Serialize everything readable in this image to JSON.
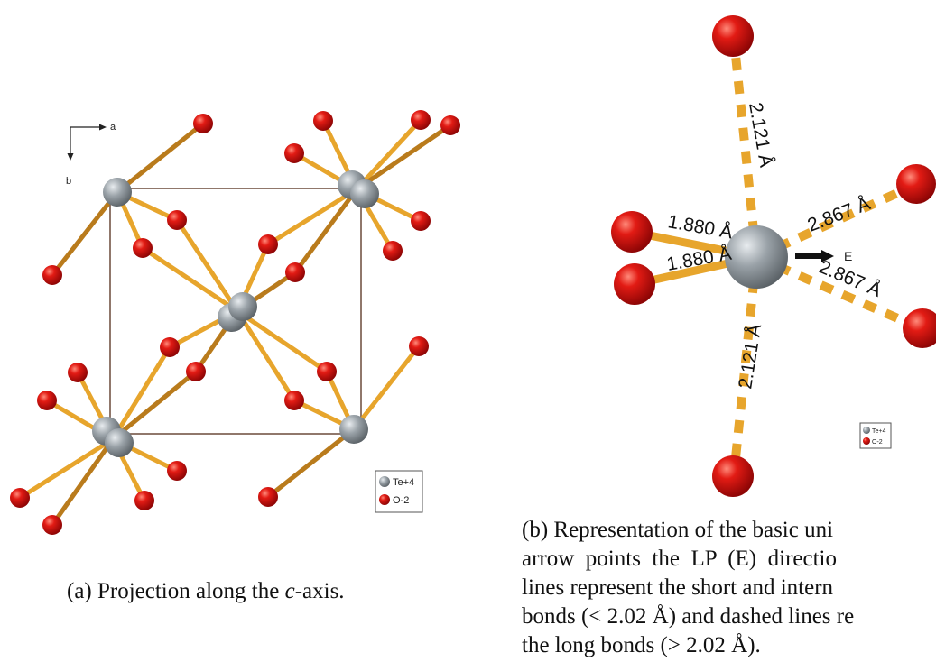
{
  "panel_a": {
    "axis_a": "a",
    "axis_b": "b",
    "legend": [
      "Te+4",
      "O-2"
    ],
    "caption_prefix": "(a) Projection along the ",
    "caption_italic": "c",
    "caption_suffix": "-axis."
  },
  "panel_b": {
    "bond_labels": [
      "2.121 Å",
      "1.880 Å",
      "1.880 Å",
      "2.867 Å",
      "2.867 Å",
      "2.121 Å"
    ],
    "arrow_label": "E",
    "legend": [
      "Te+4",
      "O-2"
    ],
    "caption_lines": [
      "(b) Representation of the basic uni",
      "arrow  points  the  LP  (E)  directio",
      "lines represent the short and intern",
      "bonds (< 2.02 Å) and dashed lines re",
      "the long bonds (> 2.02 Å)."
    ]
  },
  "colors": {
    "oxygen": "#d40f0f",
    "tellurium": "#8f979e",
    "bond": "#e7a52c",
    "bond_dark": "#b97b1c",
    "cell": "#6b4a3a"
  }
}
